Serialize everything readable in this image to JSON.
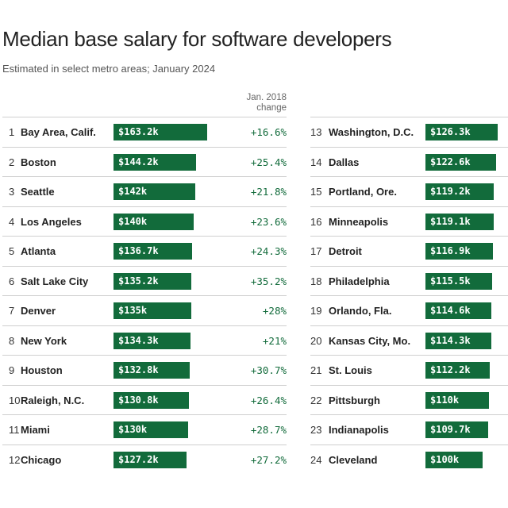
{
  "chart_data": {
    "type": "table",
    "title": "Median base salary for software developers",
    "subtitle": "Estimated in select metro areas; January 2024",
    "change_header": [
      "Jan. 2018",
      "change"
    ],
    "colors": {
      "bar": "#126b3b",
      "change_text": "#126b3b"
    },
    "bar_max": 163.2,
    "rows": [
      {
        "rank": "1",
        "city": "Bay Area, Calif.",
        "value": 163.2,
        "label": "$163.2k",
        "change": "+16.6%"
      },
      {
        "rank": "2",
        "city": "Boston",
        "value": 144.2,
        "label": "$144.2k",
        "change": "+25.4%"
      },
      {
        "rank": "3",
        "city": "Seattle",
        "value": 142,
        "label": "$142k",
        "change": "+21.8%"
      },
      {
        "rank": "4",
        "city": "Los Angeles",
        "value": 140,
        "label": "$140k",
        "change": "+23.6%"
      },
      {
        "rank": "5",
        "city": "Atlanta",
        "value": 136.7,
        "label": "$136.7k",
        "change": "+24.3%"
      },
      {
        "rank": "6",
        "city": "Salt Lake City",
        "value": 135.2,
        "label": "$135.2k",
        "change": "+35.2%"
      },
      {
        "rank": "7",
        "city": "Denver",
        "value": 135,
        "label": "$135k",
        "change": "+28%"
      },
      {
        "rank": "8",
        "city": "New York",
        "value": 134.3,
        "label": "$134.3k",
        "change": "+21%"
      },
      {
        "rank": "9",
        "city": "Houston",
        "value": 132.8,
        "label": "$132.8k",
        "change": "+30.7%"
      },
      {
        "rank": "10",
        "city": "Raleigh, N.C.",
        "value": 130.8,
        "label": "$130.8k",
        "change": "+26.4%"
      },
      {
        "rank": "11",
        "city": "Miami",
        "value": 130,
        "label": "$130k",
        "change": "+28.7%"
      },
      {
        "rank": "12",
        "city": "Chicago",
        "value": 127.2,
        "label": "$127.2k",
        "change": "+27.2%"
      },
      {
        "rank": "13",
        "city": "Washington, D.C.",
        "value": 126.3,
        "label": "$126.3k"
      },
      {
        "rank": "14",
        "city": "Dallas",
        "value": 122.6,
        "label": "$122.6k"
      },
      {
        "rank": "15",
        "city": "Portland, Ore.",
        "value": 119.2,
        "label": "$119.2k"
      },
      {
        "rank": "16",
        "city": "Minneapolis",
        "value": 119.1,
        "label": "$119.1k"
      },
      {
        "rank": "17",
        "city": "Detroit",
        "value": 116.9,
        "label": "$116.9k"
      },
      {
        "rank": "18",
        "city": "Philadelphia",
        "value": 115.5,
        "label": "$115.5k"
      },
      {
        "rank": "19",
        "city": "Orlando, Fla.",
        "value": 114.6,
        "label": "$114.6k"
      },
      {
        "rank": "20",
        "city": "Kansas City, Mo.",
        "value": 114.3,
        "label": "$114.3k"
      },
      {
        "rank": "21",
        "city": "St. Louis",
        "value": 112.2,
        "label": "$112.2k"
      },
      {
        "rank": "22",
        "city": "Pittsburgh",
        "value": 110,
        "label": "$110k"
      },
      {
        "rank": "23",
        "city": "Indianapolis",
        "value": 109.7,
        "label": "$109.7k"
      },
      {
        "rank": "24",
        "city": "Cleveland",
        "value": 100,
        "label": "$100k"
      }
    ]
  }
}
